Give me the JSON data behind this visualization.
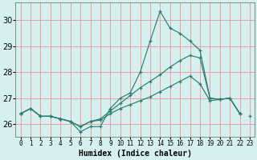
{
  "xlabel": "Humidex (Indice chaleur)",
  "bg_color": "#d6f0f0",
  "grid_color": "#e8a0a0",
  "line_color": "#2d7d6e",
  "ylim": [
    25.5,
    30.7
  ],
  "xlim": [
    -0.5,
    23.5
  ],
  "yticks": [
    26,
    27,
    28,
    29,
    30
  ],
  "xticks": [
    0,
    1,
    2,
    3,
    4,
    5,
    6,
    7,
    8,
    9,
    10,
    11,
    12,
    13,
    14,
    15,
    16,
    17,
    18,
    19,
    20,
    21,
    22,
    23
  ],
  "xtick_labels": [
    "0",
    "1",
    "2",
    "3",
    "4",
    "5",
    "6",
    "7",
    "8",
    "9",
    "10",
    "11",
    "12",
    "13",
    "14",
    "15",
    "16",
    "17",
    "18",
    "19",
    "20",
    "21",
    "22",
    "23"
  ],
  "series": [
    [
      26.4,
      26.6,
      26.3,
      26.3,
      26.2,
      26.1,
      25.7,
      25.9,
      25.9,
      26.6,
      27.0,
      27.2,
      28.0,
      29.2,
      30.35,
      29.7,
      29.5,
      29.2,
      28.85,
      27.0,
      26.95,
      27.0,
      26.4,
      null
    ],
    [
      26.4,
      null,
      null,
      null,
      null,
      null,
      null,
      null,
      null,
      null,
      null,
      null,
      null,
      null,
      null,
      null,
      null,
      null,
      null,
      null,
      null,
      null,
      null,
      26.3
    ],
    [
      26.4,
      26.6,
      26.3,
      26.3,
      26.2,
      26.1,
      25.9,
      26.1,
      26.2,
      26.5,
      26.8,
      27.1,
      27.4,
      27.65,
      27.9,
      28.2,
      28.45,
      28.65,
      28.55,
      27.0,
      26.95,
      27.0,
      26.4,
      null
    ],
    [
      26.4,
      26.6,
      26.3,
      26.3,
      26.2,
      26.1,
      25.9,
      26.1,
      26.15,
      26.4,
      26.6,
      26.75,
      26.9,
      27.05,
      27.25,
      27.45,
      27.65,
      27.85,
      27.55,
      26.9,
      26.95,
      27.0,
      26.4,
      null
    ]
  ]
}
